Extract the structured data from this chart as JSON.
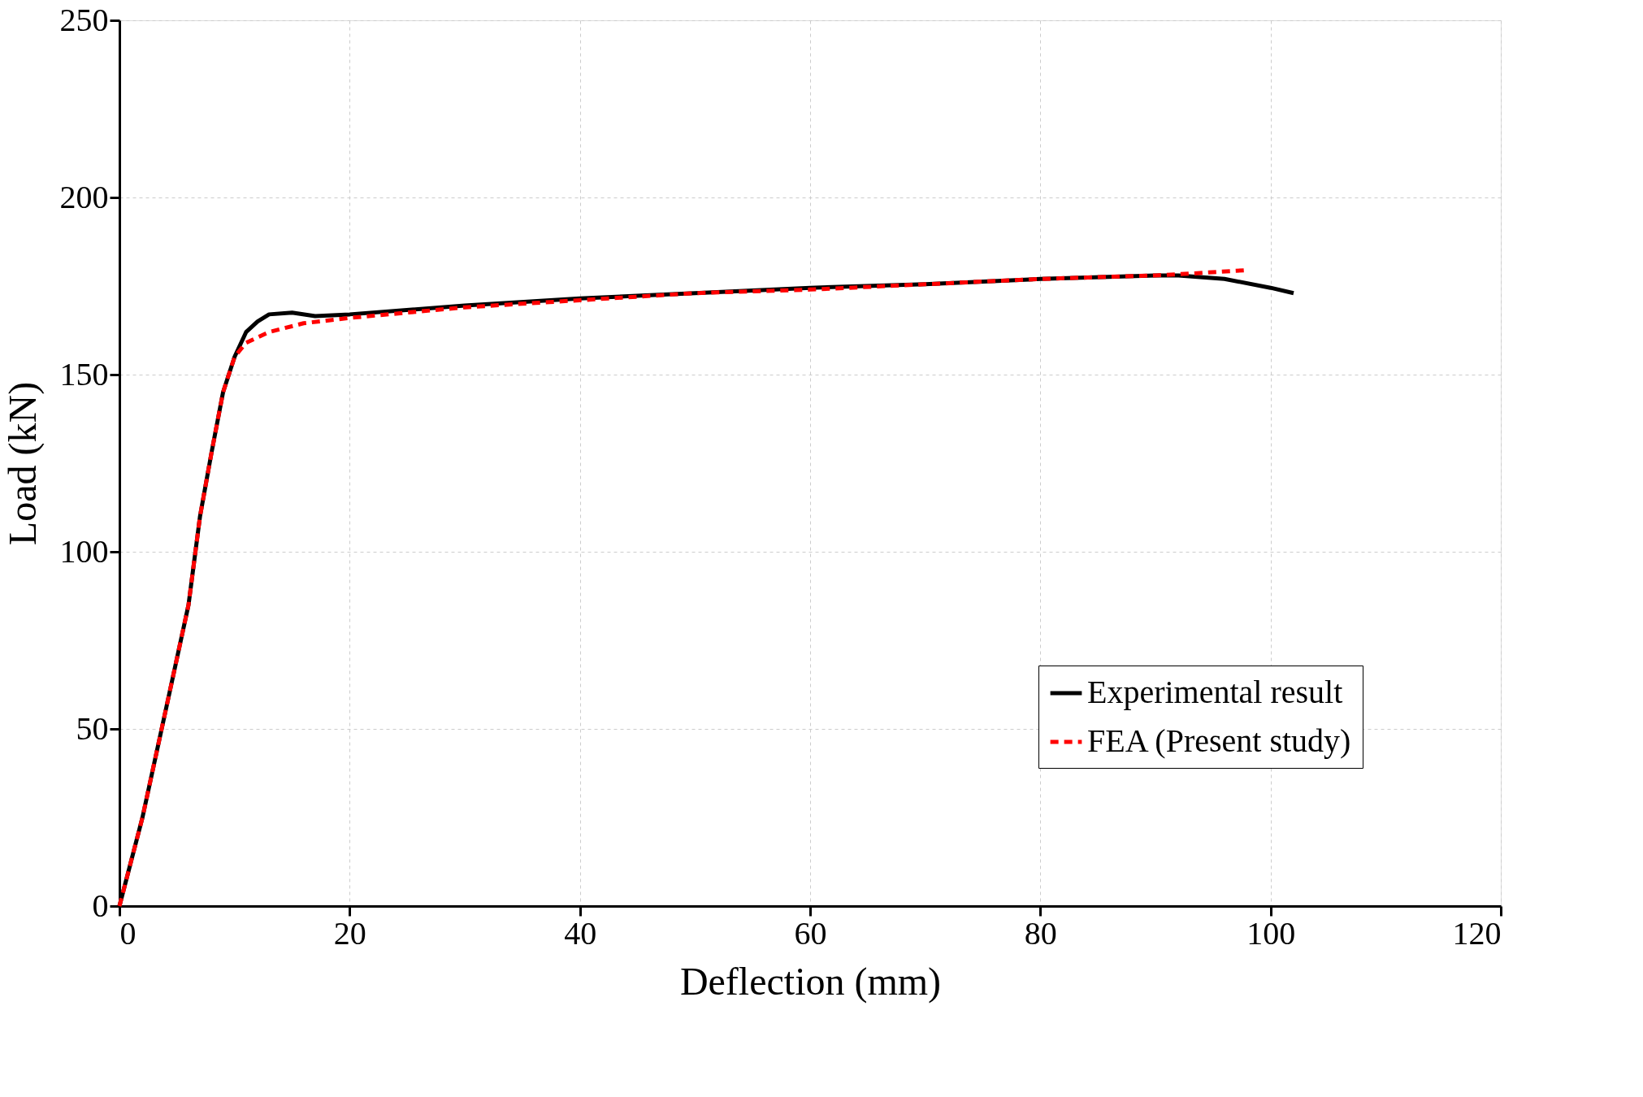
{
  "chart_data": {
    "type": "line",
    "xlabel": "Deflection (mm)",
    "ylabel": "Load (kN)",
    "xlim": [
      0,
      120
    ],
    "xticks": [
      0,
      20,
      40,
      60,
      80,
      100,
      120
    ],
    "ylim": [
      0,
      250
    ],
    "yticks": [
      0,
      50,
      100,
      150,
      200,
      250
    ],
    "grid": true,
    "legend": "bottom right",
    "series": [
      {
        "name": "Experimental result",
        "color": "#000000",
        "line_style": "solid",
        "x": [
          0,
          2,
          4,
          6,
          7,
          8,
          9,
          10,
          11,
          12,
          13,
          15,
          17,
          20,
          30,
          40,
          50,
          60,
          70,
          80,
          90,
          92,
          96,
          100,
          102
        ],
        "values": [
          0,
          25,
          55,
          85,
          110,
          128,
          145,
          155,
          162,
          165,
          167,
          167.5,
          166.5,
          167,
          169.5,
          171.5,
          173,
          174.5,
          175.5,
          177,
          178,
          178,
          177,
          174.5,
          173
        ]
      },
      {
        "name": "FEA (Present study)",
        "color": "#ff0000",
        "line_style": "dashed",
        "x": [
          0,
          2,
          4,
          6,
          7,
          8,
          9,
          10,
          11,
          13,
          16,
          20,
          30,
          40,
          50,
          60,
          70,
          80,
          90,
          93,
          98
        ],
        "values": [
          0,
          25,
          55,
          85,
          110,
          128,
          145,
          155,
          159,
          162,
          164.5,
          166,
          169,
          171,
          173,
          174,
          175.5,
          177,
          178,
          178.5,
          179.5
        ]
      }
    ]
  }
}
